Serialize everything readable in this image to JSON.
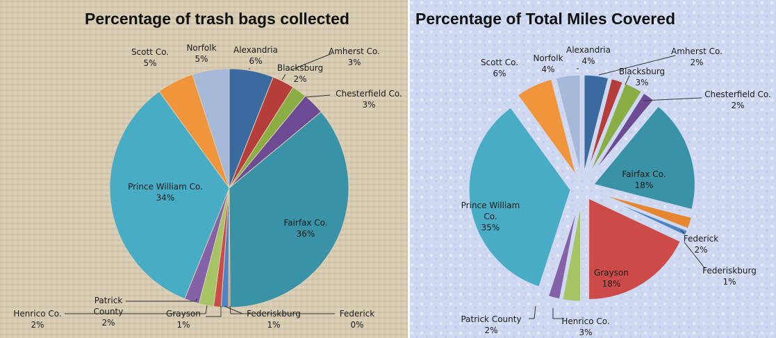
{
  "chart_data": [
    {
      "type": "pie",
      "title": "Percentage of trash bags collected",
      "background": "#d8ccb3",
      "slices": [
        {
          "label": "Alexandria",
          "value": 6,
          "value_label": "6%",
          "color": "#3a6aa0"
        },
        {
          "label": "Amherst Co.",
          "value": 3,
          "value_label": "3%",
          "color": "#b53d3a"
        },
        {
          "label": "Blacksburg",
          "value": 2,
          "value_label": "2%",
          "color": "#8aad44"
        },
        {
          "label": "Chesterfield Co.",
          "value": 3,
          "value_label": "3%",
          "color": "#6d4a94"
        },
        {
          "label": "Fairfax Co.",
          "value": 36,
          "value_label": "36%",
          "color": "#3a92a6"
        },
        {
          "label": "Federick",
          "value": 0.2,
          "value_label": "0%",
          "color": "#e6862e"
        },
        {
          "label": "Federiskburg",
          "value": 1,
          "value_label": "1%",
          "color": "#5084c4"
        },
        {
          "label": "Grayson",
          "value": 1,
          "value_label": "1%",
          "color": "#cc4a47"
        },
        {
          "label": "Henrico Co.",
          "value": 2,
          "value_label": "2%",
          "color": "#a6c463"
        },
        {
          "label": "Patrick County",
          "value": 2,
          "value_label": "2%",
          "color": "#8562a8"
        },
        {
          "label": "Prince William Co.",
          "value": 34,
          "value_label": "34%",
          "color": "#48acc4"
        },
        {
          "label": "Scott Co.",
          "value": 5,
          "value_label": "5%",
          "color": "#f0953c"
        },
        {
          "label": "Norfolk",
          "value": 5,
          "value_label": "5%",
          "color": "#a7b9d9"
        }
      ]
    },
    {
      "type": "pie",
      "title": "Percentage of  Total Miles Covered",
      "background": "#cfd8f1",
      "exploded": true,
      "slices": [
        {
          "label": "Alexandria",
          "value": 4,
          "value_label": "4%",
          "color": "#3a6aa0"
        },
        {
          "label": "Amherst Co.",
          "value": 2,
          "value_label": "2%",
          "color": "#b53d3a"
        },
        {
          "label": "Blacksburg",
          "value": 3,
          "value_label": "3%",
          "color": "#8aad44"
        },
        {
          "label": "Chesterfield Co.",
          "value": 2,
          "value_label": "2%",
          "color": "#6d4a94"
        },
        {
          "label": "Fairfax Co.",
          "value": 18,
          "value_label": "18%",
          "color": "#3a92a6"
        },
        {
          "label": "Federick",
          "value": 2,
          "value_label": "2%",
          "color": "#e6862e"
        },
        {
          "label": "Federiskburg",
          "value": 1,
          "value_label": "1%",
          "color": "#5084c4"
        },
        {
          "label": "Grayson",
          "value": 18,
          "value_label": "18%",
          "color": "#cc4a47"
        },
        {
          "label": "Henrico Co.",
          "value": 3,
          "value_label": "3%",
          "color": "#a6c463"
        },
        {
          "label": "Patrick County",
          "value": 2,
          "value_label": "2%",
          "color": "#8562a8"
        },
        {
          "label": "Prince William Co.",
          "value": 35,
          "value_label": "35%",
          "color": "#48acc4"
        },
        {
          "label": "Scott Co.",
          "value": 6,
          "value_label": "6%",
          "color": "#f0953c"
        },
        {
          "label": "Norfolk",
          "value": 4,
          "value_label": "4%",
          "color": "#a7b9d9"
        }
      ]
    }
  ]
}
